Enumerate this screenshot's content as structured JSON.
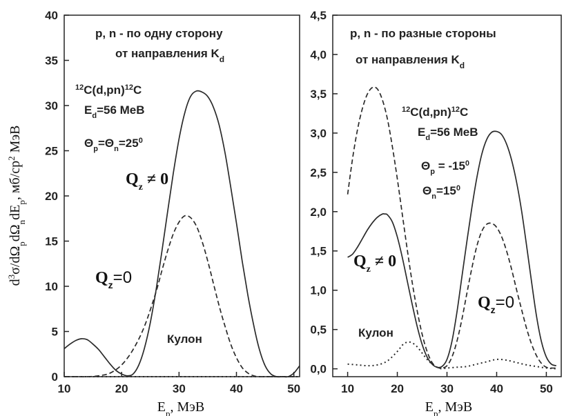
{
  "chart_data": [
    {
      "type": "line",
      "title": "p, n - по одну сторону",
      "subtitle": "от направления K",
      "subtitle_sub": "d",
      "xlabel": "Ep, МэВ",
      "ylabel": "d3σ/dΩpdΩndEp, мб/ср2 МэВ",
      "xlim": [
        10,
        51
      ],
      "ylim": [
        0,
        40
      ],
      "xticks": [
        "10",
        "20",
        "30",
        "40",
        "50"
      ],
      "yticks": [
        "0",
        "5",
        "10",
        "15",
        "20",
        "25",
        "30",
        "35",
        "40"
      ],
      "reaction_text": {
        "pre": "12",
        "body": "C(d,pn)",
        "post": "12",
        "tail": "C"
      },
      "energy_text": {
        "a": "E",
        "sub": "d",
        "b": "=56 MeB"
      },
      "angle_text": {
        "a": "Θ",
        "sub1": "p",
        "b": "=Θ",
        "sub2": "n",
        "c": "=25",
        "sup": "0"
      },
      "label_qnonzero": {
        "main": "Q",
        "sub": "z",
        "rest": " ≠ 0"
      },
      "label_qzero": {
        "main": "Q",
        "sub": "z",
        "rest": "=0"
      },
      "label_coulomb": "Кулон",
      "series": [
        {
          "style": "solid",
          "x": [
            10,
            11,
            12,
            13,
            14,
            15,
            16,
            17,
            18,
            19,
            20,
            21,
            22,
            23,
            24,
            25,
            26,
            27,
            28,
            29,
            30,
            31,
            32,
            33,
            34,
            35,
            36,
            37,
            38,
            39,
            40,
            41,
            42,
            43,
            44,
            45,
            46,
            47,
            48,
            49,
            50,
            51
          ],
          "y": [
            3.1,
            3.6,
            4.0,
            4.2,
            4.1,
            3.6,
            3.0,
            2.2,
            1.4,
            0.7,
            0.3,
            0.1,
            0.3,
            1.3,
            3.2,
            6.0,
            9.6,
            13.8,
            18.2,
            22.5,
            26.3,
            29.2,
            31.0,
            31.6,
            31.5,
            31.0,
            29.8,
            27.8,
            24.8,
            21.0,
            17.0,
            12.8,
            9.0,
            5.7,
            3.0,
            1.2,
            0.3,
            0.0,
            0.0,
            0.0,
            0.4,
            1.2
          ]
        },
        {
          "style": "dashed",
          "x": [
            10,
            12,
            14,
            16,
            18,
            20,
            22,
            24,
            26,
            27,
            28,
            29,
            30,
            31,
            32,
            33,
            34,
            35,
            36,
            37,
            38,
            39,
            40,
            41,
            42,
            43,
            44,
            45,
            46,
            47,
            48,
            49,
            50
          ],
          "y": [
            0.0,
            0.0,
            0.0,
            0.1,
            0.4,
            1.3,
            3.0,
            5.6,
            9.4,
            11.7,
            13.9,
            15.8,
            17.1,
            17.8,
            17.6,
            16.7,
            15.0,
            12.8,
            10.3,
            7.8,
            5.6,
            3.6,
            2.1,
            1.0,
            0.4,
            0.1,
            0.0,
            0.0,
            0.0,
            0.0,
            0.0,
            0.0,
            0.0
          ]
        },
        {
          "style": "dotted",
          "x": [
            10,
            20,
            30,
            40,
            51
          ],
          "y": [
            0,
            0,
            0,
            0,
            0
          ]
        }
      ]
    },
    {
      "type": "line",
      "title": "p, n - по разные стороны",
      "subtitle": "от направления K",
      "subtitle_sub": "d",
      "xlabel": "Ep, МэВ",
      "xlim": [
        7,
        53
      ],
      "ylim": [
        -0.1,
        4.5
      ],
      "xticks": [
        "10",
        "20",
        "30",
        "40",
        "50"
      ],
      "yticks": [
        "0,0",
        "0,5",
        "1,0",
        "1,5",
        "2,0",
        "2,5",
        "3,0",
        "3,5",
        "4,0",
        "4,5"
      ],
      "reaction_text": {
        "pre": "12",
        "body": "C(d,pn)",
        "post": "12",
        "tail": "C"
      },
      "energy_text": {
        "a": "E",
        "sub": "d",
        "b": "=56 MeB"
      },
      "angle_text_p": {
        "a": "Θ",
        "sub": "p",
        "b": " = -15",
        "sup": "0"
      },
      "angle_text_n": {
        "a": "Θ",
        "sub": "n",
        "b": "=15",
        "sup": "0"
      },
      "label_qnonzero": {
        "main": "Q",
        "sub": "z",
        "rest": " ≠ 0"
      },
      "label_qzero": {
        "main": "Q",
        "sub": "z",
        "rest": "=0"
      },
      "label_coulomb": "Кулон",
      "series": [
        {
          "style": "solid",
          "x": [
            10,
            11,
            12,
            13,
            14,
            15,
            16,
            17,
            17.5,
            18,
            19,
            20,
            21,
            22,
            23,
            24,
            25,
            26,
            27,
            28,
            29,
            30,
            31,
            32,
            33,
            34,
            35,
            36,
            37,
            38,
            39,
            40,
            41,
            42,
            43,
            44,
            45,
            46,
            47,
            48,
            49,
            50,
            51,
            52
          ],
          "y": [
            1.42,
            1.46,
            1.55,
            1.66,
            1.77,
            1.86,
            1.93,
            1.97,
            1.97,
            1.96,
            1.87,
            1.68,
            1.42,
            1.12,
            0.82,
            0.54,
            0.31,
            0.15,
            0.06,
            0.02,
            0.03,
            0.12,
            0.35,
            0.72,
            1.17,
            1.62,
            2.05,
            2.43,
            2.73,
            2.92,
            3.01,
            3.02,
            2.98,
            2.86,
            2.66,
            2.38,
            2.02,
            1.58,
            1.12,
            0.68,
            0.35,
            0.15,
            0.06,
            0.04
          ]
        },
        {
          "style": "dashed",
          "x": [
            10,
            11,
            12,
            13,
            14,
            15,
            16,
            17,
            18,
            19,
            20,
            21,
            22,
            23,
            24,
            25,
            26,
            27,
            28,
            29,
            30,
            31,
            32,
            33,
            34,
            35,
            36,
            37,
            38,
            39,
            40,
            41,
            42,
            43,
            44,
            45,
            46,
            47,
            48,
            49,
            50,
            51,
            52
          ],
          "y": [
            2.22,
            2.68,
            3.05,
            3.32,
            3.5,
            3.58,
            3.56,
            3.42,
            3.18,
            2.83,
            2.42,
            1.97,
            1.52,
            1.1,
            0.74,
            0.44,
            0.22,
            0.08,
            0.02,
            0.01,
            0.04,
            0.15,
            0.35,
            0.63,
            0.96,
            1.28,
            1.56,
            1.75,
            1.84,
            1.85,
            1.8,
            1.68,
            1.5,
            1.27,
            1.01,
            0.76,
            0.52,
            0.32,
            0.17,
            0.07,
            0.02,
            0.01,
            0.01
          ]
        },
        {
          "style": "dotted",
          "x": [
            10,
            12,
            14,
            16,
            18,
            20,
            21,
            22,
            23,
            24,
            25,
            26,
            27,
            28,
            29,
            30,
            32,
            34,
            36,
            38,
            40,
            42,
            44,
            46,
            48,
            50,
            52
          ],
          "y": [
            0.06,
            0.05,
            0.04,
            0.05,
            0.1,
            0.22,
            0.3,
            0.34,
            0.33,
            0.28,
            0.2,
            0.12,
            0.06,
            0.02,
            0.0,
            0.01,
            0.02,
            0.03,
            0.06,
            0.09,
            0.12,
            0.11,
            0.08,
            0.05,
            0.03,
            0.01,
            0.0
          ]
        }
      ]
    }
  ]
}
